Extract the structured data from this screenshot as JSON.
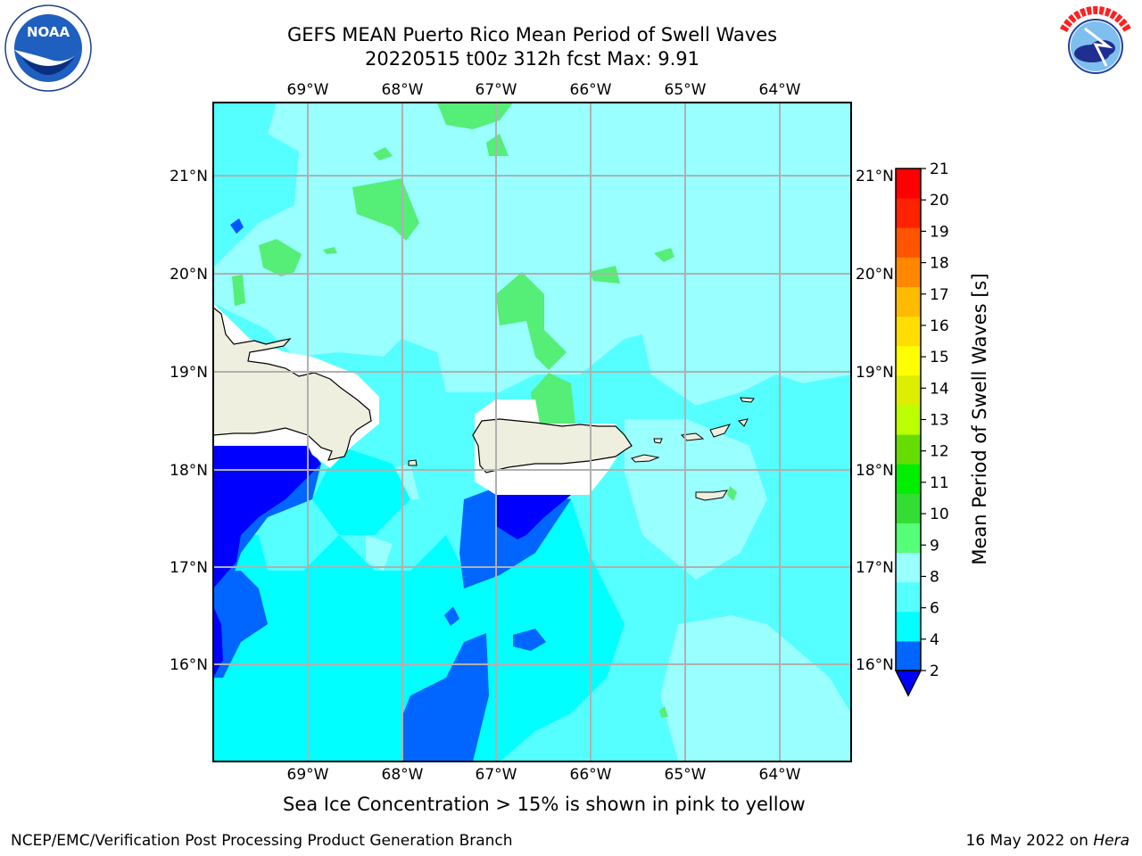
{
  "title": {
    "line1": "GEFS MEAN Puerto Rico Mean Period of Swell Waves",
    "line2": "20220515 t00z 312h fcst   Max: 9.91"
  },
  "logos": {
    "left": "noaa-logo",
    "right": "national-weather-service-logo"
  },
  "map": {
    "lon_labels": [
      "69°W",
      "68°W",
      "67°W",
      "66°W",
      "65°W",
      "64°W"
    ],
    "lat_labels": [
      "21°N",
      "20°N",
      "19°N",
      "18°N",
      "17°N",
      "16°N"
    ],
    "extent": {
      "lon": [
        -69.2,
        -62.45
      ],
      "lat": [
        15.0,
        21.75
      ]
    },
    "gridlines": true,
    "land_color": "#efefdf",
    "ocean_base_color": "#99ffff"
  },
  "colorbar": {
    "label": "Mean Period of Swell Waves [s]",
    "ticks": [
      "21",
      "20",
      "19",
      "18",
      "17",
      "16",
      "15",
      "14",
      "13",
      "12",
      "11",
      "10",
      "9",
      "8",
      "6",
      "4",
      "2"
    ],
    "levels": [
      2,
      4,
      6,
      8,
      9,
      10,
      11,
      12,
      13,
      14,
      15,
      16,
      17,
      18,
      19,
      20,
      21
    ],
    "colors": [
      "#0066ff",
      "#00ffff",
      "#55ffff",
      "#99ffff",
      "#55ff77",
      "#33dd33",
      "#00ee00",
      "#66dd00",
      "#bbff00",
      "#ddee00",
      "#ffff00",
      "#ffdd00",
      "#ffbb00",
      "#ff8800",
      "#ff5500",
      "#ff2200",
      "#ff0000"
    ],
    "extend_min_color": "#0000ff"
  },
  "subtitle": "Sea Ice Concentration > 15% is shown in pink to yellow",
  "footer": {
    "left": "NCEP/EMC/Verification Post Processing Product Generation Branch",
    "right_date": "16 May 2022 on ",
    "right_host": "Hera"
  }
}
